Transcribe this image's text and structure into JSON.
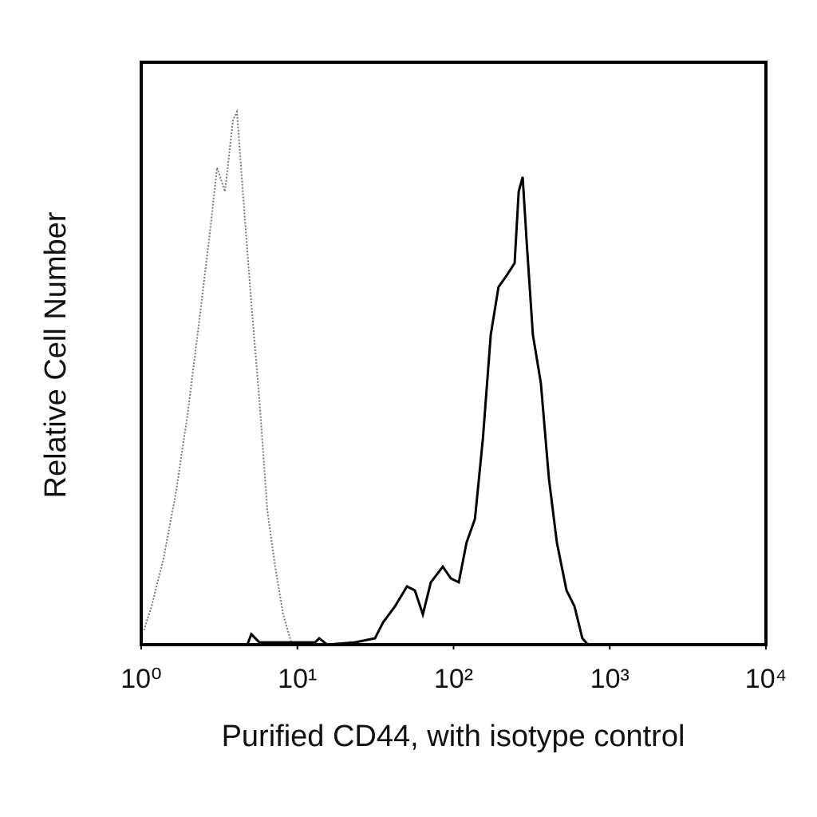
{
  "chart_data": {
    "type": "line",
    "x_label": "Purified CD44, with isotype control",
    "y_label": "Relative Cell Number",
    "xscale": "log",
    "xlim": [
      1,
      10000
    ],
    "xticks": [
      {
        "value": 1,
        "label": "10⁰"
      },
      {
        "value": 10,
        "label": "10¹"
      },
      {
        "value": 100,
        "label": "10²"
      },
      {
        "value": 1000,
        "label": "10³"
      },
      {
        "value": 10000,
        "label": "10⁴"
      }
    ],
    "ylim": [
      0,
      100
    ],
    "grid": false,
    "series": [
      {
        "color": "#777777",
        "line_style": "dotted",
        "x": [
          1.04,
          1.165,
          1.39,
          1.66,
          1.98,
          2.36,
          2.72,
          3.06,
          3.44,
          3.87,
          4.1,
          4.51,
          5.07,
          5.7,
          6.42,
          7.21,
          8.11,
          9.13
        ],
        "values": [
          2.5,
          6.6,
          14.8,
          25.8,
          39.5,
          55.9,
          69.6,
          81.9,
          77.8,
          90.1,
          91.5,
          76.4,
          58.6,
          42.2,
          23.0,
          13.4,
          5.2,
          0.4
        ]
      },
      {
        "color": "#000000",
        "line_style": "solid",
        "x": [
          4.78,
          5.07,
          5.7,
          13.0,
          13.8,
          15.5,
          23.4,
          31.4,
          35.3,
          42.2,
          50.3,
          56.5,
          63.6,
          71.5,
          85.3,
          96,
          108,
          121,
          137,
          154,
          173,
          194,
          219,
          246,
          261,
          277,
          293,
          322,
          362,
          408,
          459,
          529,
          594,
          668,
          726
        ],
        "values": [
          0,
          1.8,
          0.4,
          0.4,
          1.1,
          0,
          0.4,
          1.1,
          3.8,
          6.6,
          10,
          9.3,
          5.2,
          10.7,
          13.4,
          11.4,
          10.7,
          17.5,
          21.6,
          35.3,
          53.2,
          61.4,
          63.4,
          65.5,
          77.8,
          80.3,
          69.6,
          53.2,
          44.9,
          28.5,
          17.5,
          9.3,
          6.6,
          1.1,
          0
        ]
      }
    ]
  }
}
